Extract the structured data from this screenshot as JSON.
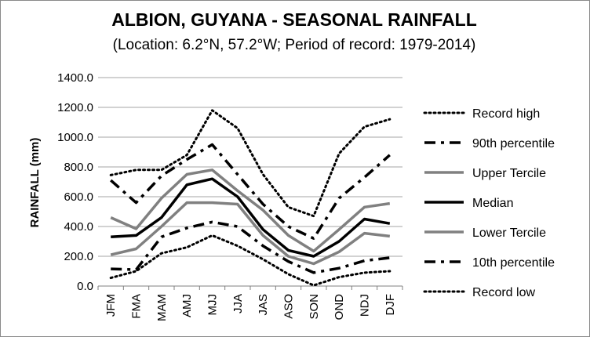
{
  "chart_data": {
    "type": "line",
    "title": "ALBION, GUYANA - SEASONAL RAINFALL",
    "subtitle": "(Location: 6.2°N, 57.2°W; Period of record: 1979-2014)",
    "xlabel": "",
    "ylabel": "RAINFALL (mm)",
    "ylim": [
      0,
      1400
    ],
    "y_ticks": [
      "0.0",
      "200.0",
      "400.0",
      "600.0",
      "800.0",
      "1000.0",
      "1200.0",
      "1400.0"
    ],
    "y_tick_values": [
      0,
      200,
      400,
      600,
      800,
      1000,
      1200,
      1400
    ],
    "grid": "horizontal",
    "legend": "right",
    "categories": [
      "JFM",
      "FMA",
      "MAM",
      "AMJ",
      "MJJ",
      "JJA",
      "JAS",
      "ASO",
      "SON",
      "OND",
      "NDJ",
      "DJF"
    ],
    "series": [
      {
        "name": "Record high",
        "style": "dotted",
        "color": "#000000",
        "values": [
          745,
          780,
          780,
          880,
          1180,
          1060,
          750,
          530,
          470,
          890,
          1070,
          1120
        ]
      },
      {
        "name": "90th percentile",
        "style": "dashdot",
        "color": "#000000",
        "values": [
          710,
          560,
          740,
          850,
          950,
          750,
          550,
          400,
          320,
          590,
          730,
          880
        ]
      },
      {
        "name": "Upper Tercile",
        "style": "solid",
        "color": "#808080",
        "values": [
          460,
          385,
          590,
          750,
          780,
          640,
          510,
          340,
          235,
          380,
          530,
          555
        ]
      },
      {
        "name": "Median",
        "style": "solid",
        "color": "#000000",
        "values": [
          330,
          340,
          460,
          680,
          720,
          600,
          380,
          240,
          200,
          300,
          450,
          420
        ]
      },
      {
        "name": "Lower Tercile",
        "style": "solid",
        "color": "#808080",
        "values": [
          210,
          250,
          400,
          560,
          560,
          550,
          340,
          200,
          150,
          230,
          355,
          335
        ]
      },
      {
        "name": "10th percentile",
        "style": "dashdot",
        "color": "#000000",
        "values": [
          115,
          110,
          330,
          390,
          430,
          400,
          270,
          165,
          90,
          120,
          170,
          190
        ]
      },
      {
        "name": "Record low",
        "style": "dotted",
        "color": "#000000",
        "values": [
          55,
          100,
          220,
          260,
          340,
          270,
          180,
          80,
          5,
          60,
          90,
          100
        ]
      }
    ]
  }
}
